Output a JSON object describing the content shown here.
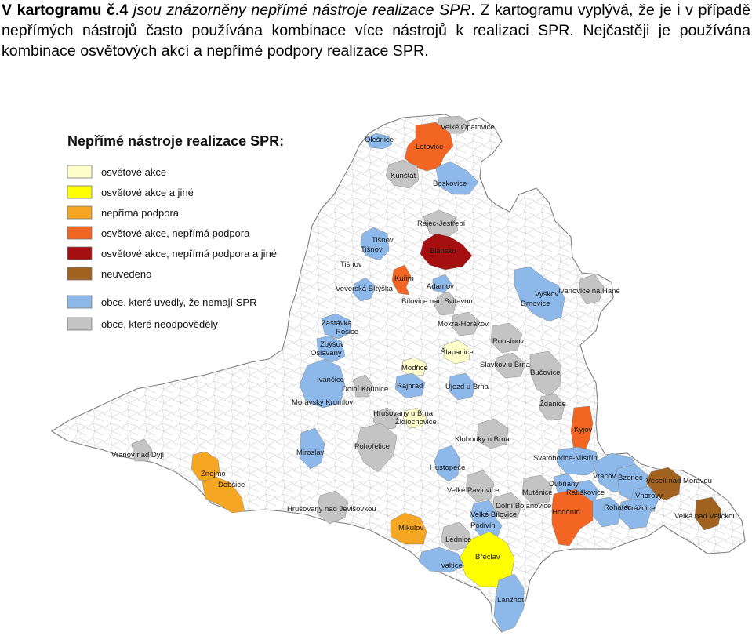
{
  "intro": {
    "heading": "V kartogramu č.4",
    "text_1": " jsou znázorněny nepřímé nástroje realizace SPR",
    "text_2": ". Z kartogramu vyplývá, že je i v případě nepřímých nástrojů často používána kombinace více nástrojů k realizaci SPR. Nejčastěji je používána kombinace osvětových akcí a nepřímé podpory realizace SPR."
  },
  "legend": {
    "title": "Nepřímé nástroje realizace SPR:",
    "items": [
      {
        "label": "osvětové akce",
        "color": "#ffffcc"
      },
      {
        "label": "osvětové akce a jiné",
        "color": "#ffff00"
      },
      {
        "label": "nepřímá podpora",
        "color": "#f5a623"
      },
      {
        "label": "osvětové akce, nepřímá podpora",
        "color": "#f26522"
      },
      {
        "label": "osvětové akce, nepřímá podpora a jiné",
        "color": "#a50f0f"
      },
      {
        "label": "neuvedeno",
        "color": "#a0621e"
      },
      {
        "label": "obce, které uvedly, že nemají SPR",
        "color": "#8db8ea"
      },
      {
        "label": "obce, které neodpověděly",
        "color": "#c4c4c4"
      }
    ]
  },
  "municipalities": [
    {
      "name": "Velké Opatovice",
      "category": "obce, které neodpověděly"
    },
    {
      "name": "Olešnice",
      "category": "obce, které uvedly, že nemají SPR"
    },
    {
      "name": "Letovice",
      "category": "osvětové akce, nepřímá podpora"
    },
    {
      "name": "Kunštát",
      "category": "obce, které neodpověděly"
    },
    {
      "name": "Boskovice",
      "category": "obce, které uvedly, že nemají SPR"
    },
    {
      "name": "Rájec-Jestřebí",
      "category": "obce, které neodpověděly"
    },
    {
      "name": "Tišnov",
      "category": "obce, které uvedly, že nemají SPR"
    },
    {
      "name": "Blansko",
      "category": "osvětové akce, nepřímá podpora a jiné"
    },
    {
      "name": "Kuřim",
      "category": "osvětové akce, nepřímá podpora"
    },
    {
      "name": "Adamov",
      "category": "obce, které uvedly, že nemají SPR"
    },
    {
      "name": "Veverská Bítýška",
      "category": "obce, které uvedly, že nemají SPR"
    },
    {
      "name": "Bílovice nad Svitavou",
      "category": "obce, které neodpověděly"
    },
    {
      "name": "Vyškov",
      "category": "obce, které uvedly, že nemají SPR"
    },
    {
      "name": "Drnovice",
      "category": "obce, které uvedly, že nemají SPR"
    },
    {
      "name": "Ivanovice na Hané",
      "category": "obce, které neodpověděly"
    },
    {
      "name": "Zastávka",
      "category": "obce, které uvedly, že nemají SPR"
    },
    {
      "name": "Rosice",
      "category": "obce, které uvedly, že nemají SPR"
    },
    {
      "name": "Mokrá-Horákov",
      "category": "obce, které neodpověděly"
    },
    {
      "name": "Zbýšov",
      "category": "obce, které uvedly, že nemají SPR"
    },
    {
      "name": "Oslavany",
      "category": "obce, které uvedly, že nemají SPR"
    },
    {
      "name": "Rousínov",
      "category": "obce, které neodpověděly"
    },
    {
      "name": "Šlapanice",
      "category": "osvětové akce"
    },
    {
      "name": "Modřice",
      "category": "osvětové akce"
    },
    {
      "name": "Slavkov u Brna",
      "category": "obce, které neodpověděly"
    },
    {
      "name": "Bučovice",
      "category": "obce, které neodpověděly"
    },
    {
      "name": "Ivančice",
      "category": "obce, které uvedly, že nemají SPR"
    },
    {
      "name": "Dolní Kounice",
      "category": "obce, které neodpověděly"
    },
    {
      "name": "Rajhrad",
      "category": "obce, které uvedly, že nemají SPR"
    },
    {
      "name": "Újezd u Brna",
      "category": "obce, které uvedly, že nemají SPR"
    },
    {
      "name": "Moravský Krumlov",
      "category": "obce, které uvedly, že nemají SPR"
    },
    {
      "name": "Ždánice",
      "category": "obce, které neodpověděly"
    },
    {
      "name": "Hrušovany u Brna",
      "category": "obce, které neodpověděly"
    },
    {
      "name": "Židlochovice",
      "category": "osvětové akce"
    },
    {
      "name": "Kyjov",
      "category": "osvětové akce, nepřímá podpora"
    },
    {
      "name": "Klobouky u Brna",
      "category": "obce, které neodpověděly"
    },
    {
      "name": "Vranov nad Dyjí",
      "category": "obce, které neodpověděly"
    },
    {
      "name": "Pohořelice",
      "category": "obce, které neodpověděly"
    },
    {
      "name": "Miroslav",
      "category": "obce, které uvedly, že nemají SPR"
    },
    {
      "name": "Svatobořice-Mistřín",
      "category": "obce, které uvedly, že nemají SPR"
    },
    {
      "name": "Znojmo",
      "category": "nepřímá podpora"
    },
    {
      "name": "Dobšice",
      "category": "nepřímá podpora"
    },
    {
      "name": "Hustopeče",
      "category": "obce, které uvedly, že nemají SPR"
    },
    {
      "name": "Vracov",
      "category": "obce, které uvedly, že nemají SPR"
    },
    {
      "name": "Bzenec",
      "category": "obce, které uvedly, že nemají SPR"
    },
    {
      "name": "Veselí nad Moravou",
      "category": "neuvedeno"
    },
    {
      "name": "Velké Pavlovice",
      "category": "obce, které neodpověděly"
    },
    {
      "name": "Mutěnice",
      "category": "obce, které neodpověděly"
    },
    {
      "name": "Dubňany",
      "category": "obce, které uvedly, že nemají SPR"
    },
    {
      "name": "Ratíškovice",
      "category": "obce, které uvedly, že nemají SPR"
    },
    {
      "name": "Vnorovy",
      "category": "obce, které uvedly, že nemají SPR"
    },
    {
      "name": "Dolní Bojanovice",
      "category": "obce, které neodpověděly"
    },
    {
      "name": "Velké Bílovice",
      "category": "obce, které uvedly, že nemají SPR"
    },
    {
      "name": "Hrušovany nad Jevišovkou",
      "category": "obce, které neodpověděly"
    },
    {
      "name": "Hodonín",
      "category": "osvětové akce, nepřímá podpora"
    },
    {
      "name": "Rohatec",
      "category": "obce, které uvedly, že nemají SPR"
    },
    {
      "name": "Strážnice",
      "category": "obce, které uvedly, že nemají SPR"
    },
    {
      "name": "Velká nad Veličkou",
      "category": "neuvedeno"
    },
    {
      "name": "Podivín",
      "category": "obce, které uvedly, že nemají SPR"
    },
    {
      "name": "Mikulov",
      "category": "nepřímá podpora"
    },
    {
      "name": "Lednice",
      "category": "obce, které neodpověděly"
    },
    {
      "name": "Břeclav",
      "category": "osvětové akce a jiné"
    },
    {
      "name": "Valtice",
      "category": "obce, které uvedly, že nemají SPR"
    },
    {
      "name": "Lanžhot",
      "category": "obce, které uvedly, že nemají SPR"
    }
  ]
}
